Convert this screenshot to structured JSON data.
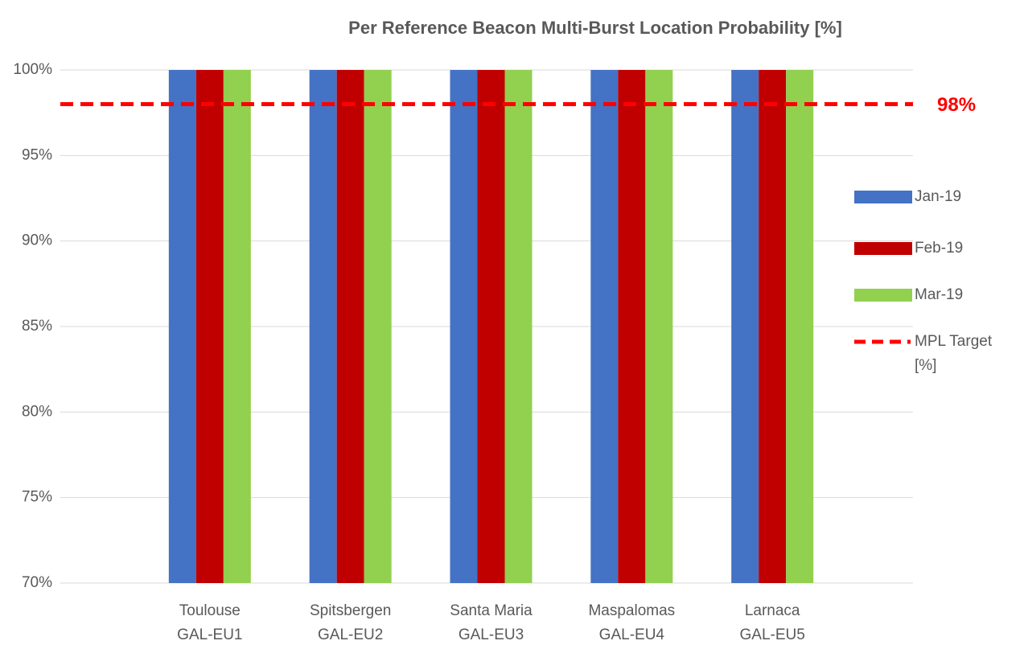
{
  "chart_data": {
    "type": "bar",
    "title": "Per Reference Beacon Multi-Burst Location Probability [%]",
    "categories": [
      [
        "Toulouse",
        "GAL-EU1"
      ],
      [
        "Spitsbergen",
        "GAL-EU2"
      ],
      [
        "Santa Maria",
        "GAL-EU3"
      ],
      [
        "Maspalomas",
        "GAL-EU4"
      ],
      [
        "Larnaca",
        "GAL-EU5"
      ]
    ],
    "series": [
      {
        "name": "Jan-19",
        "color": "#4472c4",
        "values": [
          100,
          100,
          100,
          100,
          100
        ]
      },
      {
        "name": "Feb-19",
        "color": "#c00000",
        "values": [
          100,
          100,
          100,
          100,
          100
        ]
      },
      {
        "name": "Mar-19",
        "color": "#92d050",
        "values": [
          100,
          100,
          100,
          100,
          100
        ]
      }
    ],
    "target": {
      "name": "MPL Target [%]",
      "value": 98,
      "label": "98%",
      "color": "#ff0000"
    },
    "ylim": [
      70,
      100
    ],
    "yticks": [
      {
        "value": 70,
        "label": "70%"
      },
      {
        "value": 75,
        "label": "75%"
      },
      {
        "value": 80,
        "label": "80%"
      },
      {
        "value": 85,
        "label": "85%"
      },
      {
        "value": 90,
        "label": "90%"
      },
      {
        "value": 95,
        "label": "95%"
      },
      {
        "value": 100,
        "label": "100%"
      }
    ],
    "grid": true
  }
}
